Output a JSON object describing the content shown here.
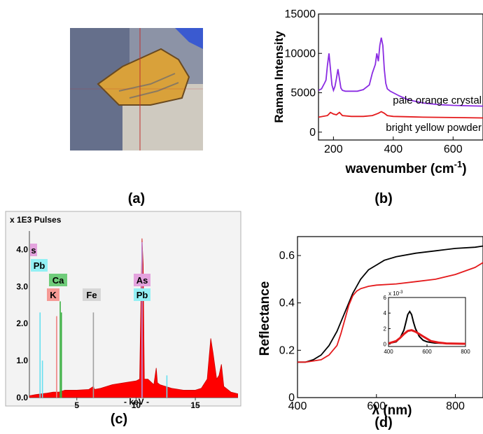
{
  "panels": {
    "a": "(a)",
    "b": "(b)",
    "c": "(c)",
    "d": "(d)"
  },
  "colors": {
    "purple": "#8a2be2",
    "red": "#e41a1c",
    "black": "#000000",
    "xrf_fill": "#ff0000",
    "xrf_frame_bg": "#f3f3f3",
    "label_pink": "#e4a3de",
    "label_cyan": "#93f0f4",
    "label_green": "#6fcc7a",
    "label_salmon": "#f59a95",
    "label_gray": "#d6d6d6",
    "photo_bg": "#8c93a6",
    "photo_orange": "#d9a13a"
  },
  "photo": {
    "description_icon": "crosshair-icon"
  },
  "chart_data": [
    {
      "panel": "b",
      "type": "line",
      "ylabel": "Raman Intensity",
      "xlabel": "wavenumber (cm",
      "xlabel_sup": "-1",
      "xlabel_close": ")",
      "xlim": [
        150,
        700
      ],
      "ylim": [
        -1000,
        15000
      ],
      "xticks": [
        200,
        400,
        600
      ],
      "yticks": [
        0,
        5000,
        10000,
        15000
      ],
      "series": [
        {
          "name": "pale orange crystal",
          "color": "#8a2be2",
          "x": [
            150,
            160,
            170,
            175,
            180,
            185,
            190,
            195,
            200,
            205,
            210,
            215,
            220,
            225,
            230,
            240,
            260,
            280,
            300,
            320,
            330,
            340,
            345,
            350,
            355,
            360,
            365,
            370,
            375,
            380,
            390,
            400,
            420,
            450,
            500,
            550,
            600,
            650,
            700
          ],
          "y": [
            5300,
            5500,
            6200,
            6600,
            8500,
            10000,
            8000,
            6000,
            5300,
            5800,
            6800,
            8000,
            6800,
            5600,
            5300,
            5200,
            5200,
            5200,
            5400,
            6000,
            7500,
            8600,
            10000,
            9000,
            11000,
            12000,
            11000,
            8000,
            6200,
            5500,
            5200,
            5000,
            4600,
            4100,
            3700,
            3500,
            3400,
            3350,
            3300
          ]
        },
        {
          "name": "bright yellow powder",
          "color": "#e41a1c",
          "x": [
            150,
            180,
            190,
            200,
            210,
            220,
            230,
            260,
            300,
            330,
            350,
            360,
            370,
            380,
            400,
            450,
            500,
            600,
            700
          ],
          "y": [
            1900,
            2100,
            2500,
            2300,
            2200,
            2500,
            2100,
            2000,
            2000,
            2100,
            2400,
            2600,
            2400,
            2100,
            2000,
            1950,
            1900,
            1850,
            1800
          ]
        }
      ],
      "series_labels": [
        "pale orange crystal",
        "bright yellow powder"
      ]
    },
    {
      "panel": "c",
      "type": "area",
      "title": "x 1E3 Pulses",
      "xlabel": "- keV -",
      "xlim": [
        1,
        18.6
      ],
      "ylim": [
        0,
        4.5
      ],
      "xticks": [
        5,
        10,
        15
      ],
      "yticks": [
        0.0,
        1.0,
        2.0,
        3.0,
        4.0
      ],
      "ytick_labels": [
        "0.0",
        "1.0",
        "2.0",
        "3.0",
        "4.0"
      ],
      "spectrum": {
        "x": [
          1.0,
          1.5,
          2.0,
          2.5,
          3.0,
          3.5,
          4.0,
          5.0,
          6.0,
          6.4,
          6.5,
          7.0,
          8.0,
          9.0,
          10.0,
          10.3,
          10.5,
          10.6,
          10.7,
          11.0,
          11.5,
          11.7,
          11.8,
          12.0,
          12.5,
          13.0,
          14.0,
          15.0,
          15.5,
          16.0,
          16.3,
          16.5,
          16.8,
          17.0,
          17.2,
          17.4,
          18.0,
          18.6
        ],
        "y": [
          0.05,
          0.08,
          0.1,
          0.12,
          0.15,
          0.15,
          0.2,
          0.2,
          0.22,
          0.3,
          0.22,
          0.25,
          0.35,
          0.4,
          0.45,
          0.5,
          4.3,
          3.6,
          0.5,
          0.5,
          0.35,
          0.8,
          0.4,
          0.35,
          0.3,
          0.25,
          0.2,
          0.2,
          0.25,
          0.5,
          1.6,
          1.2,
          0.5,
          0.6,
          0.9,
          0.3,
          0.15,
          0.1
        ]
      },
      "lines": [
        {
          "x": 1.9,
          "h": 2.3,
          "color": "#66e0f0"
        },
        {
          "x": 2.1,
          "h": 1.0,
          "color": "#66e0f0"
        },
        {
          "x": 3.3,
          "h": 2.2,
          "color": "#f08080"
        },
        {
          "x": 3.6,
          "h": 2.6,
          "color": "#3cb043"
        },
        {
          "x": 3.7,
          "h": 2.3,
          "color": "#3cb043"
        },
        {
          "x": 6.4,
          "h": 2.3,
          "color": "#a0a0a0"
        },
        {
          "x": 10.5,
          "h": 4.0,
          "color": "#66e0f0"
        },
        {
          "x": 10.5,
          "h": 4.2,
          "color": "#c080d0"
        },
        {
          "x": 12.6,
          "h": 0.6,
          "color": "#66e0f0"
        }
      ],
      "element_labels": [
        {
          "text": "s",
          "color": "#e4a3de"
        },
        {
          "text": "Pb",
          "color": "#93f0f4"
        },
        {
          "text": "Ca",
          "color": "#6fcc7a"
        },
        {
          "text": "K",
          "color": "#f59a95"
        },
        {
          "text": "Fe",
          "color": "#d6d6d6"
        },
        {
          "text": "As",
          "color": "#e4a3de"
        },
        {
          "text": "Pb",
          "color": "#93f0f4"
        }
      ]
    },
    {
      "panel": "d",
      "type": "line",
      "ylabel": "Reflectance",
      "xlabel": "λ (nm)",
      "xlim": [
        400,
        870
      ],
      "ylim": [
        0,
        0.68
      ],
      "xticks": [
        400,
        600,
        800
      ],
      "yticks": [
        0,
        0.2,
        0.4,
        0.6
      ],
      "ytick_labels": [
        "0",
        "0.2",
        "0.4",
        "0.6"
      ],
      "series": [
        {
          "color": "#000000",
          "x": [
            400,
            420,
            440,
            460,
            480,
            500,
            520,
            540,
            560,
            580,
            600,
            620,
            650,
            700,
            750,
            800,
            850,
            870
          ],
          "y": [
            0.15,
            0.15,
            0.16,
            0.18,
            0.22,
            0.28,
            0.36,
            0.44,
            0.5,
            0.54,
            0.56,
            0.58,
            0.595,
            0.61,
            0.62,
            0.63,
            0.635,
            0.64
          ]
        },
        {
          "color": "#e41a1c",
          "x": [
            400,
            420,
            440,
            460,
            480,
            500,
            510,
            520,
            530,
            540,
            550,
            560,
            580,
            600,
            650,
            700,
            750,
            800,
            850,
            870
          ],
          "y": [
            0.15,
            0.15,
            0.155,
            0.16,
            0.18,
            0.22,
            0.27,
            0.33,
            0.39,
            0.43,
            0.45,
            0.46,
            0.47,
            0.475,
            0.48,
            0.49,
            0.5,
            0.52,
            0.55,
            0.57
          ]
        }
      ],
      "inset": {
        "title": "x 10",
        "title_sup": "-3",
        "xlim": [
          400,
          800
        ],
        "ylim": [
          -0.3,
          6
        ],
        "xticks": [
          400,
          600,
          800
        ],
        "yticks": [
          0,
          2,
          4,
          6
        ],
        "series": [
          {
            "color": "#000000",
            "x": [
              400,
              440,
              460,
              480,
              490,
              500,
              510,
              520,
              530,
              540,
              560,
              580,
              600,
              640,
              700,
              800
            ],
            "y": [
              0.1,
              0.3,
              0.8,
              1.8,
              2.8,
              3.8,
              4.2,
              3.8,
              2.8,
              2.0,
              1.0,
              0.5,
              0.3,
              0.15,
              0.1,
              0.05
            ]
          },
          {
            "color": "#e41a1c",
            "x": [
              400,
              440,
              460,
              480,
              500,
              520,
              540,
              560,
              580,
              600,
              620,
              660,
              700,
              800
            ],
            "y": [
              0.1,
              0.4,
              0.8,
              1.3,
              1.7,
              1.8,
              1.6,
              1.3,
              1.0,
              0.7,
              0.4,
              0.2,
              0.1,
              0.05
            ]
          }
        ]
      }
    }
  ]
}
